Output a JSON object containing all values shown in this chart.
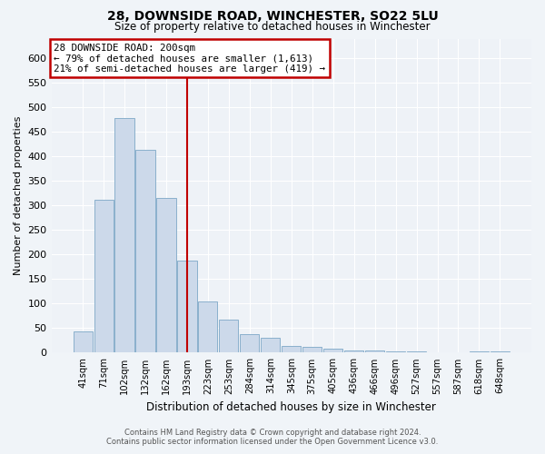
{
  "title": "28, DOWNSIDE ROAD, WINCHESTER, SO22 5LU",
  "subtitle": "Size of property relative to detached houses in Winchester",
  "xlabel": "Distribution of detached houses by size in Winchester",
  "ylabel": "Number of detached properties",
  "categories": [
    "41sqm",
    "71sqm",
    "102sqm",
    "132sqm",
    "162sqm",
    "193sqm",
    "223sqm",
    "253sqm",
    "284sqm",
    "314sqm",
    "345sqm",
    "375sqm",
    "405sqm",
    "436sqm",
    "466sqm",
    "496sqm",
    "527sqm",
    "557sqm",
    "587sqm",
    "618sqm",
    "648sqm"
  ],
  "values": [
    44,
    312,
    478,
    414,
    315,
    188,
    104,
    68,
    37,
    30,
    13,
    12,
    9,
    5,
    4,
    3,
    2,
    0,
    0,
    3,
    2
  ],
  "highlight_index": 5,
  "highlight_color": "#c00000",
  "bar_color": "#ccd9ea",
  "bar_edge_color": "#8ab0cc",
  "annotation_text": "28 DOWNSIDE ROAD: 200sqm\n← 79% of detached houses are smaller (1,613)\n21% of semi-detached houses are larger (419) →",
  "annotation_box_color": "#ffffff",
  "annotation_box_edge": "#c00000",
  "footer_line1": "Contains HM Land Registry data © Crown copyright and database right 2024.",
  "footer_line2": "Contains public sector information licensed under the Open Government Licence v3.0.",
  "ylim": [
    0,
    640
  ],
  "yticks": [
    0,
    50,
    100,
    150,
    200,
    250,
    300,
    350,
    400,
    450,
    500,
    550,
    600
  ],
  "background_color": "#f0f4f8",
  "plot_bg_color": "#eef2f7",
  "grid_color": "#ffffff",
  "title_fontsize": 10,
  "subtitle_fontsize": 8.5
}
